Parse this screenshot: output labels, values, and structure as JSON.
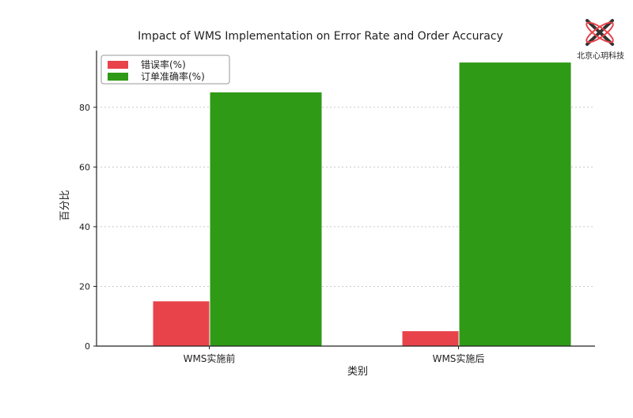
{
  "brand": {
    "text": "北京心玥科技"
  },
  "colors": {
    "error": "#e8434a",
    "accuracy": "#2f9a16",
    "grid": "#c8c8c8",
    "axis": "#222222"
  },
  "chart_data": {
    "type": "bar",
    "title": "Impact of WMS Implementation on Error Rate and Order Accuracy",
    "xlabel": "类别",
    "ylabel": "百分比",
    "categories": [
      "WMS实施前",
      "WMS实施后"
    ],
    "series": [
      {
        "name": "错误率(%)",
        "values": [
          15,
          5
        ]
      },
      {
        "name": "订单准确率(%)",
        "values": [
          85,
          95
        ]
      }
    ],
    "yticks": [
      0,
      20,
      40,
      60,
      80
    ],
    "ylim": [
      0,
      99
    ],
    "grid": "horizontal dotted",
    "legend": "top-left"
  }
}
